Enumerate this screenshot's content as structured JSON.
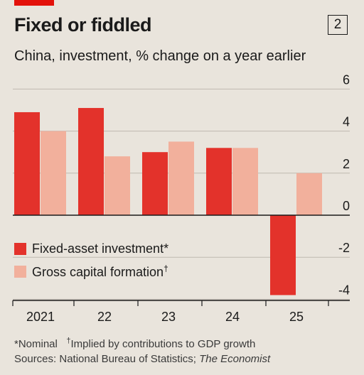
{
  "header": {
    "title": "Fixed or fiddled",
    "chart_number": "2",
    "subtitle": "China, investment, % change on a year earlier"
  },
  "colors": {
    "fixed_asset": "#e3322b",
    "gross_capital": "#f2b09c",
    "axis": "#1a1a1a",
    "grid": "#bfb9b0",
    "background": "#e9e4dc"
  },
  "chart_data": {
    "type": "bar",
    "categories": [
      "2021",
      "22",
      "23",
      "24",
      "25"
    ],
    "series": [
      {
        "name": "Fixed-asset investment*",
        "values": [
          4.9,
          5.1,
          3.0,
          3.2,
          -3.8
        ]
      },
      {
        "name": "Gross capital formation",
        "name_mark": "†",
        "values": [
          4.0,
          2.8,
          3.5,
          3.2,
          2.0
        ]
      }
    ],
    "ylim": [
      -4.4,
      6.4
    ],
    "yticks": [
      6,
      4,
      2,
      0,
      -2,
      -4
    ],
    "ytick_labels": [
      "6",
      "4",
      "2",
      "0",
      "-2",
      "-4"
    ],
    "grid": true,
    "legend_position": "bottom-left"
  },
  "footer": {
    "note_nominal": "*Nominal",
    "note_implied_mark": "†",
    "note_implied": "Implied by contributions to GDP growth",
    "sources_prefix": "Sources: National Bureau of Statistics; ",
    "sources_italic": "The Economist"
  }
}
